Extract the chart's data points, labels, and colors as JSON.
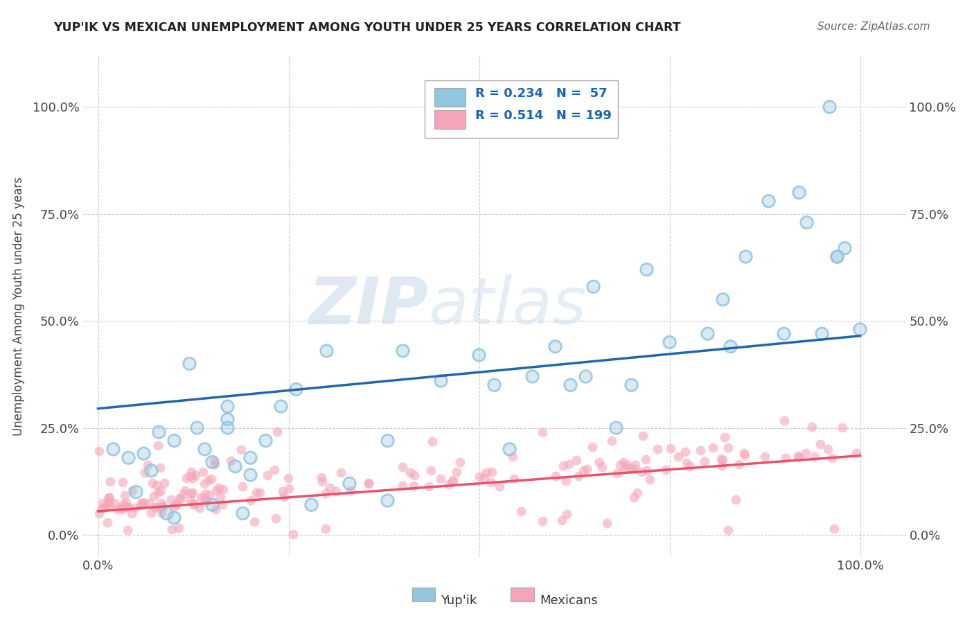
{
  "title": "YUP'IK VS MEXICAN UNEMPLOYMENT AMONG YOUTH UNDER 25 YEARS CORRELATION CHART",
  "source": "Source: ZipAtlas.com",
  "xlabel_start": "0.0%",
  "xlabel_end": "100.0%",
  "ylabel": "Unemployment Among Youth under 25 years",
  "ytick_labels": [
    "0.0%",
    "25.0%",
    "50.0%",
    "75.0%",
    "100.0%"
  ],
  "ytick_values": [
    0,
    0.25,
    0.5,
    0.75,
    1.0
  ],
  "xtick_values": [
    0.0,
    0.25,
    0.5,
    0.75,
    1.0
  ],
  "legend_yupik": "Yup'ik",
  "legend_mexicans": "Mexicans",
  "R_yupik": "0.234",
  "N_yupik": "57",
  "R_mexicans": "0.514",
  "N_mexicans": "199",
  "yupik_color": "#92c5de",
  "mexican_color": "#f4a6b8",
  "yupik_line_color": "#2166ac",
  "mexican_line_color": "#e8536a",
  "background_color": "#ffffff",
  "watermark_zip": "ZIP",
  "watermark_atlas": "atlas",
  "yupik_line_x": [
    0.0,
    1.0
  ],
  "yupik_line_y": [
    0.295,
    0.465
  ],
  "mexican_line_x": [
    0.0,
    1.0
  ],
  "mexican_line_y": [
    0.055,
    0.185
  ],
  "yupik_scatter_x": [
    0.02,
    0.04,
    0.05,
    0.06,
    0.07,
    0.08,
    0.09,
    0.1,
    0.1,
    0.12,
    0.13,
    0.14,
    0.15,
    0.15,
    0.17,
    0.17,
    0.17,
    0.18,
    0.19,
    0.2,
    0.2,
    0.22,
    0.24,
    0.26,
    0.28,
    0.3,
    0.33,
    0.38,
    0.38,
    0.4,
    0.45,
    0.5,
    0.52,
    0.54,
    0.57,
    0.6,
    0.62,
    0.64,
    0.65,
    0.68,
    0.7,
    0.72,
    0.75,
    0.8,
    0.82,
    0.83,
    0.85,
    0.88,
    0.9,
    0.92,
    0.93,
    0.95,
    0.96,
    0.97,
    0.97,
    0.98,
    1.0
  ],
  "yupik_scatter_y": [
    0.2,
    0.18,
    0.1,
    0.19,
    0.15,
    0.24,
    0.05,
    0.04,
    0.22,
    0.4,
    0.25,
    0.2,
    0.17,
    0.07,
    0.3,
    0.27,
    0.25,
    0.16,
    0.05,
    0.18,
    0.14,
    0.22,
    0.3,
    0.34,
    0.07,
    0.43,
    0.12,
    0.08,
    0.22,
    0.43,
    0.36,
    0.42,
    0.35,
    0.2,
    0.37,
    0.44,
    0.35,
    0.37,
    0.58,
    0.25,
    0.35,
    0.62,
    0.45,
    0.47,
    0.55,
    0.44,
    0.65,
    0.78,
    0.47,
    0.8,
    0.73,
    0.47,
    1.0,
    0.65,
    0.65,
    0.67,
    0.48
  ],
  "mexican_seed": 99
}
